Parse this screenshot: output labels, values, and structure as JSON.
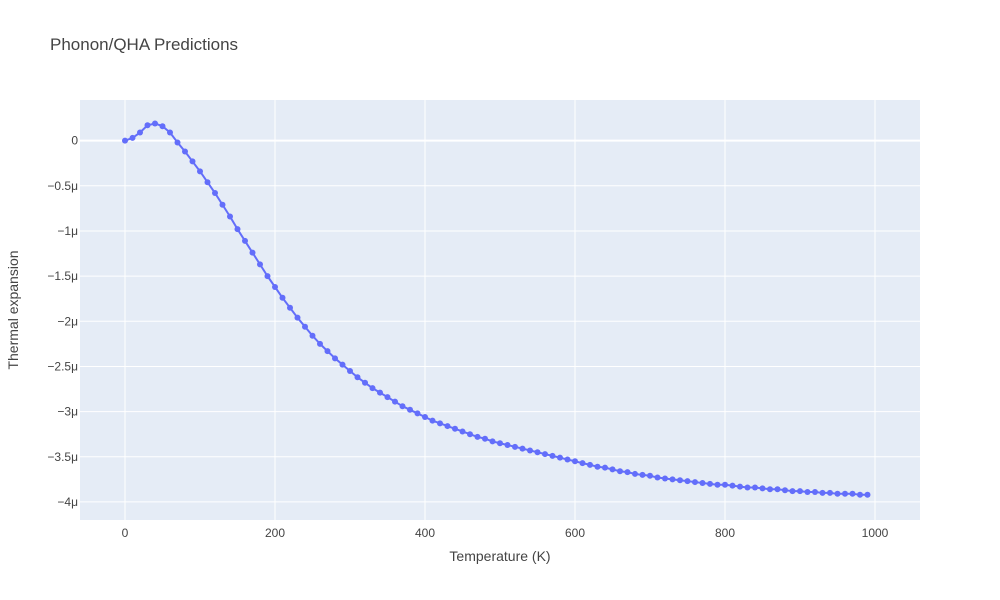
{
  "chart_data": {
    "type": "line",
    "title": "Phonon/QHA Predictions",
    "xlabel": "Temperature (K)",
    "ylabel": "Thermal expansion",
    "xlim": [
      -60,
      1060
    ],
    "ylim": [
      -4.2e-06,
      4.5e-07
    ],
    "x_ticks": [
      0,
      200,
      400,
      600,
      800,
      1000
    ],
    "x_tick_labels": [
      "0",
      "200",
      "400",
      "600",
      "800",
      "1000"
    ],
    "y_ticks": [
      0,
      -5e-07,
      -1e-06,
      -1.5e-06,
      -2e-06,
      -2.5e-06,
      -3e-06,
      -3.5e-06,
      -4e-06
    ],
    "y_tick_labels": [
      "0",
      "−0.5μ",
      "−1μ",
      "−1.5μ",
      "−2μ",
      "−2.5μ",
      "−3μ",
      "−3.5μ",
      "−4μ"
    ],
    "grid": true,
    "colors": {
      "series": "#636efa",
      "plot_bg": "#e5ecf6",
      "grid": "#ffffff"
    },
    "series": [
      {
        "x": [
          0,
          10,
          20,
          30,
          40,
          50,
          60,
          70,
          80,
          90,
          100,
          110,
          120,
          130,
          140,
          150,
          160,
          170,
          180,
          190,
          200,
          210,
          220,
          230,
          240,
          250,
          260,
          270,
          280,
          290,
          300,
          310,
          320,
          330,
          340,
          350,
          360,
          370,
          380,
          390,
          400,
          410,
          420,
          430,
          440,
          450,
          460,
          470,
          480,
          490,
          500,
          510,
          520,
          530,
          540,
          550,
          560,
          570,
          580,
          590,
          600,
          610,
          620,
          630,
          640,
          650,
          660,
          670,
          680,
          690,
          700,
          710,
          720,
          730,
          740,
          750,
          760,
          770,
          780,
          790,
          800,
          810,
          820,
          830,
          840,
          850,
          860,
          870,
          880,
          890,
          900,
          910,
          920,
          930,
          940,
          950,
          960,
          970,
          980,
          990
        ],
        "y": [
          0,
          3e-08,
          9e-08,
          1.7e-07,
          1.9e-07,
          1.6e-07,
          9e-08,
          -2e-08,
          -1.2e-07,
          -2.3e-07,
          -3.4e-07,
          -4.6e-07,
          -5.8e-07,
          -7.1e-07,
          -8.4e-07,
          -9.8e-07,
          -1.11e-06,
          -1.24e-06,
          -1.37e-06,
          -1.5e-06,
          -1.62e-06,
          -1.74e-06,
          -1.85e-06,
          -1.96e-06,
          -2.06e-06,
          -2.16e-06,
          -2.25e-06,
          -2.33e-06,
          -2.41e-06,
          -2.48e-06,
          -2.55e-06,
          -2.62e-06,
          -2.68e-06,
          -2.74e-06,
          -2.79e-06,
          -2.84e-06,
          -2.89e-06,
          -2.94e-06,
          -2.98e-06,
          -3.02e-06,
          -3.06e-06,
          -3.1e-06,
          -3.13e-06,
          -3.16e-06,
          -3.19e-06,
          -3.22e-06,
          -3.25e-06,
          -3.28e-06,
          -3.3e-06,
          -3.33e-06,
          -3.35e-06,
          -3.37e-06,
          -3.39e-06,
          -3.41e-06,
          -3.43e-06,
          -3.45e-06,
          -3.47e-06,
          -3.49e-06,
          -3.51e-06,
          -3.53e-06,
          -3.55e-06,
          -3.57e-06,
          -3.59e-06,
          -3.61e-06,
          -3.62e-06,
          -3.64e-06,
          -3.66e-06,
          -3.67e-06,
          -3.69e-06,
          -3.7e-06,
          -3.71e-06,
          -3.73e-06,
          -3.74e-06,
          -3.75e-06,
          -3.76e-06,
          -3.77e-06,
          -3.78e-06,
          -3.79e-06,
          -3.8e-06,
          -3.81e-06,
          -3.81e-06,
          -3.82e-06,
          -3.83e-06,
          -3.84e-06,
          -3.84e-06,
          -3.85e-06,
          -3.86e-06,
          -3.86e-06,
          -3.87e-06,
          -3.88e-06,
          -3.88e-06,
          -3.89e-06,
          -3.89e-06,
          -3.9e-06,
          -3.9e-06,
          -3.91e-06,
          -3.91e-06,
          -3.91e-06,
          -3.92e-06,
          -3.92e-06
        ]
      }
    ]
  }
}
